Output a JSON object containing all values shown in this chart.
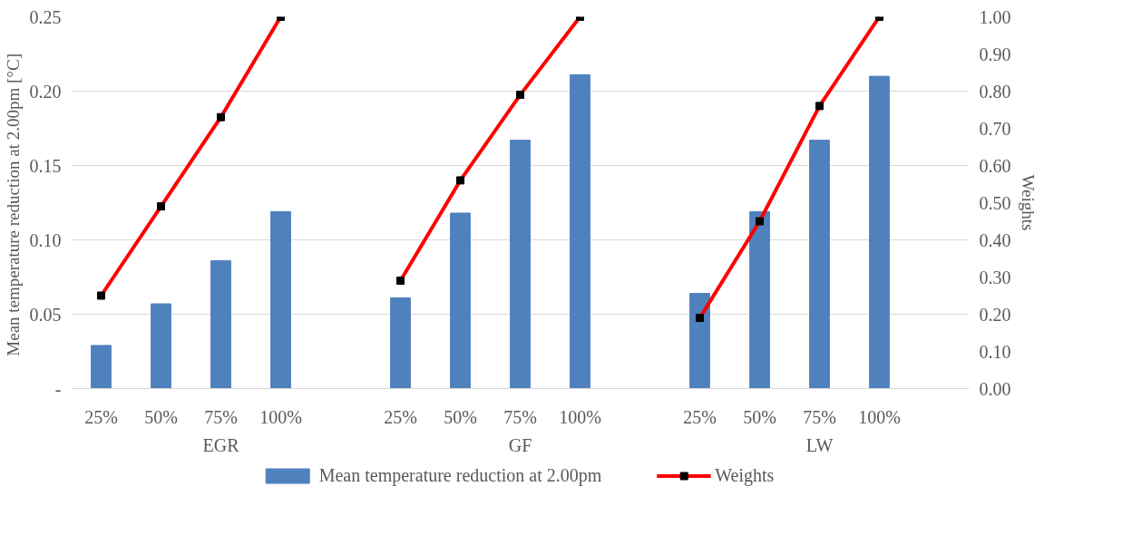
{
  "chart_data": {
    "type": "bar",
    "categories": [
      "25%",
      "50%",
      "75%",
      "100%",
      null,
      "25%",
      "50%",
      "75%",
      "100%",
      null,
      "25%",
      "50%",
      "75%",
      "100%",
      null
    ],
    "series": [
      {
        "name": "Mean temperature reduction at 2.00pm",
        "axis": "y",
        "color": "#4f81bd",
        "values": [
          0.029,
          0.057,
          0.086,
          0.119,
          null,
          0.061,
          0.118,
          0.167,
          0.211,
          null,
          0.064,
          0.119,
          0.167,
          0.21,
          null
        ]
      },
      {
        "name": "Weights",
        "type": "line",
        "axis": "y2",
        "color": "#ff0000",
        "marker": "square",
        "values": [
          0.25,
          0.49,
          0.73,
          1.0,
          null,
          0.29,
          0.56,
          0.79,
          1.0,
          null,
          0.19,
          0.45,
          0.76,
          1.0,
          null
        ]
      }
    ],
    "ylabel": "Mean temperature  reduction at 2.00pm [°C]",
    "y2label": "Weights",
    "ylim": [
      0,
      0.25
    ],
    "yticks": [
      {
        "value": 0,
        "label": "-"
      },
      0.05,
      {
        "value": 0.1,
        "label": "0.10"
      },
      0.15,
      {
        "value": 0.2,
        "label": "0.20"
      },
      0.25
    ],
    "y2lim": [
      0,
      1.0
    ],
    "y2ticks": [
      {
        "value": 0,
        "label": "0.00"
      },
      {
        "value": 0.1,
        "label": "0.10"
      },
      {
        "value": 0.2,
        "label": "0.20"
      },
      {
        "value": 0.3,
        "label": "0.30"
      },
      {
        "value": 0.4,
        "label": "0.40"
      },
      {
        "value": 0.5,
        "label": "0.50"
      },
      {
        "value": 0.6,
        "label": "0.60"
      },
      {
        "value": 0.7,
        "label": "0.70"
      },
      {
        "value": 0.8,
        "label": "0.80"
      },
      {
        "value": 0.9,
        "label": "0.90"
      },
      {
        "value": 1.0,
        "label": "1.00"
      }
    ],
    "annotations": [
      "EGR",
      "GF",
      "LW"
    ],
    "grid": "y",
    "legend": "bottom"
  }
}
